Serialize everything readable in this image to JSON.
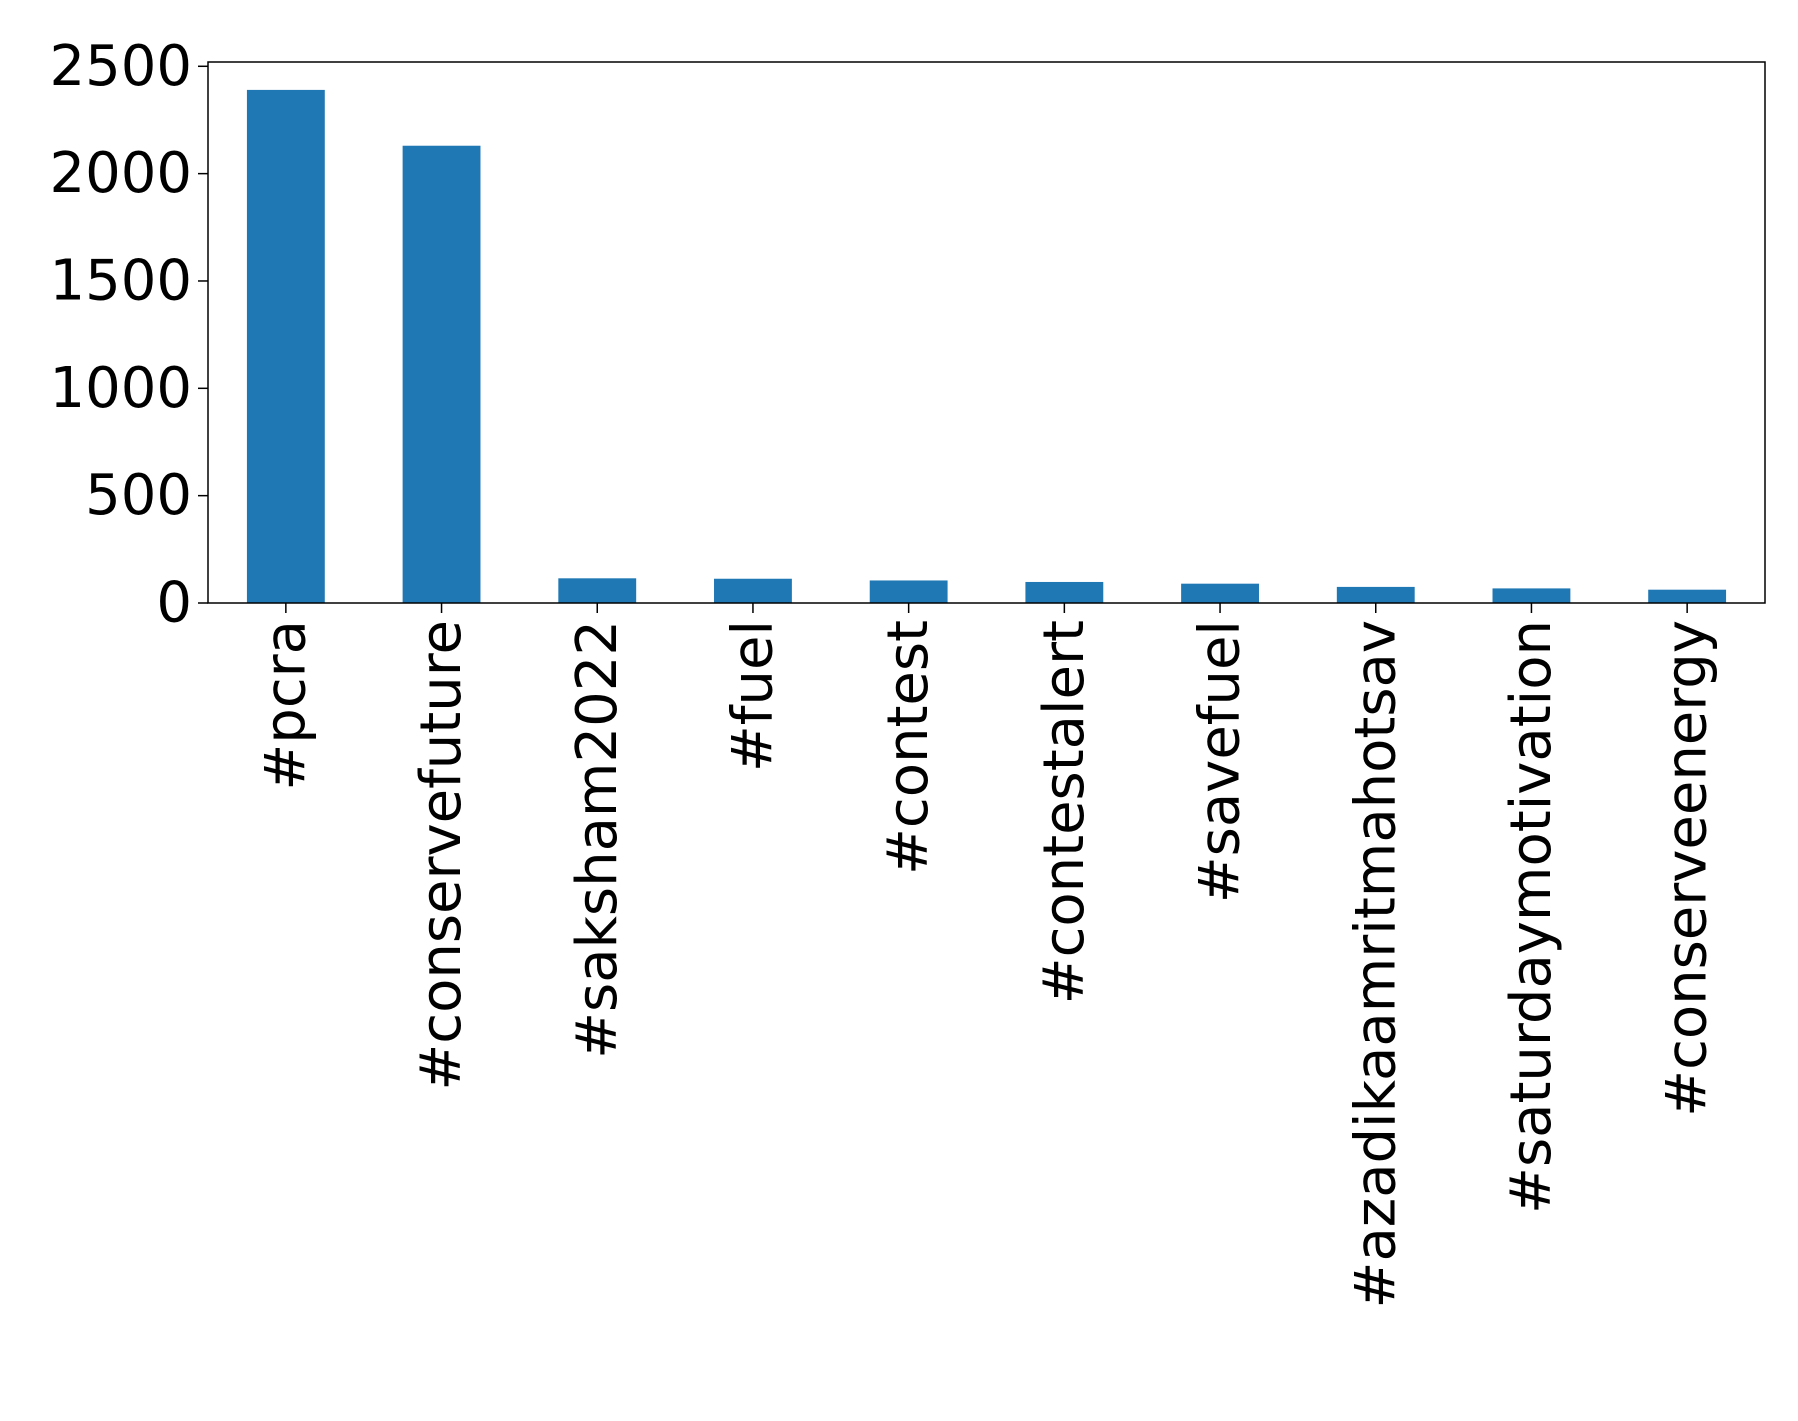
{
  "chart_data": {
    "type": "bar",
    "title": "",
    "xlabel": "",
    "ylabel": "",
    "categories": [
      "#pcra",
      "#conservefuture",
      "#saksham2022",
      "#fuel",
      "#contest",
      "#contestalert",
      "#savefuel",
      "#azadikaamritmahotsav",
      "#saturdaymotivation",
      "#conserveenergy"
    ],
    "values": [
      2390,
      2130,
      115,
      113,
      105,
      98,
      90,
      75,
      68,
      62
    ],
    "ylim": [
      0,
      2520
    ],
    "yticks": [
      0,
      500,
      1000,
      1500,
      2000,
      2500
    ],
    "ytick_labels": [
      "0",
      "500",
      "1000",
      "1500",
      "2000",
      "2500"
    ],
    "bar_color": "#1f77b4",
    "grid": false,
    "legend": "none"
  }
}
